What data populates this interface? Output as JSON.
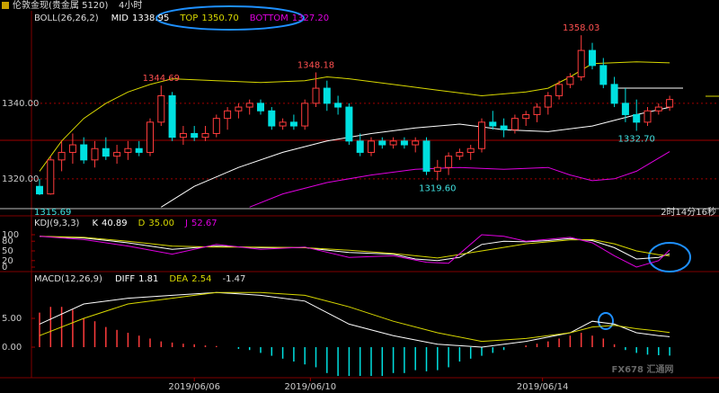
{
  "header": {
    "title": "伦敦金现(贵金属 5120)",
    "period": "4小时"
  },
  "watermark": "FX678 汇通网",
  "countdown": "2时14分16秒",
  "chart_data": [
    {
      "type": "candlestick",
      "title": "BOLL(26,26,2)",
      "open": [
        1318,
        1316,
        1325,
        1327,
        1329,
        1325,
        1328,
        1326,
        1327,
        1328,
        1327,
        1335,
        1342,
        1331,
        1332,
        1331,
        1332,
        1336,
        1338,
        1339,
        1340,
        1338,
        1334,
        1335,
        1334,
        1340,
        1344,
        1340,
        1339,
        1330,
        1327,
        1330,
        1329,
        1330,
        1329,
        1330,
        1322,
        1323,
        1326,
        1327,
        1328,
        1335,
        1334,
        1333,
        1336,
        1337,
        1339,
        1342,
        1345,
        1347,
        1354,
        1350,
        1345,
        1340,
        1337,
        1335,
        1338,
        1339
      ],
      "high": [
        1320,
        1326,
        1330,
        1332,
        1331,
        1330,
        1331,
        1329,
        1330,
        1330,
        1336,
        1344.69,
        1343,
        1334,
        1334,
        1334,
        1337,
        1339,
        1340,
        1341,
        1341,
        1339,
        1336,
        1337,
        1341,
        1348.18,
        1346,
        1342,
        1340,
        1332,
        1331,
        1331,
        1331,
        1331,
        1331,
        1331,
        1325,
        1327,
        1328,
        1329,
        1336,
        1338,
        1336,
        1337,
        1338,
        1340,
        1343,
        1346,
        1348,
        1358.03,
        1356,
        1352,
        1347,
        1344,
        1341,
        1339,
        1340,
        1342
      ],
      "low": [
        1315.69,
        1315.8,
        1322,
        1324,
        1324,
        1323,
        1325,
        1324,
        1325,
        1326,
        1326,
        1334,
        1330,
        1329,
        1330,
        1330,
        1331,
        1333,
        1336,
        1337,
        1337,
        1333,
        1333,
        1333,
        1333,
        1339,
        1338,
        1337,
        1329,
        1326,
        1326,
        1328,
        1328,
        1328,
        1327,
        1321,
        1319.6,
        1321,
        1325,
        1325,
        1327,
        1333,
        1331,
        1332,
        1334,
        1335,
        1337,
        1341,
        1344,
        1346,
        1349,
        1344,
        1339,
        1335,
        1332.7,
        1334,
        1337,
        1338
      ],
      "close": [
        1316,
        1325,
        1327,
        1329,
        1325,
        1328,
        1326,
        1327,
        1328,
        1327,
        1335,
        1342,
        1331,
        1332,
        1331,
        1332,
        1336,
        1338,
        1339,
        1340,
        1338,
        1334,
        1335,
        1334,
        1340,
        1344,
        1340,
        1339,
        1330,
        1327,
        1330,
        1329,
        1330,
        1329,
        1330,
        1322,
        1323,
        1326,
        1327,
        1328,
        1335,
        1334,
        1333,
        1336,
        1337,
        1339,
        1342,
        1345,
        1347,
        1354,
        1350,
        1345,
        1340,
        1337,
        1335,
        1338,
        1339,
        1341
      ],
      "up_color": "#ff3c3c",
      "down_color": "#00e0e0",
      "ylim": [
        1312.1,
        1364.5
      ],
      "yticks": [
        {
          "value": 1340,
          "label": "1340.00"
        },
        {
          "value": 1320,
          "label": "1320.00"
        }
      ],
      "grid": true,
      "series": [
        {
          "name": "MID",
          "color": "#ffffff",
          "current": 1338.95,
          "x": [
            11,
            14,
            18,
            22,
            26,
            30,
            34,
            38,
            42,
            46,
            50,
            54,
            57
          ],
          "values": [
            1312.5,
            1318,
            1323,
            1327,
            1330,
            1332,
            1333.5,
            1334.5,
            1333,
            1332.5,
            1334,
            1337,
            1338.95
          ]
        },
        {
          "name": "TOP",
          "color": "#d8d800",
          "current": {
            "value": 1350.7,
            "label": "1350.70"
          },
          "x": [
            0,
            2,
            4,
            6,
            8,
            10,
            12,
            16,
            20,
            24,
            26,
            28,
            32,
            36,
            40,
            44,
            46,
            48,
            50,
            54,
            57
          ],
          "values": [
            1322,
            1330,
            1336,
            1340,
            1343,
            1345,
            1346.5,
            1346,
            1345.5,
            1346,
            1347,
            1346.5,
            1345,
            1343.5,
            1342,
            1343,
            1344,
            1347,
            1350.5,
            1351,
            1350.7
          ]
        },
        {
          "name": "BOTTOM",
          "color": "#e000e0",
          "current": {
            "value": 1327.2,
            "label": "1327.20"
          },
          "x": [
            19,
            22,
            26,
            30,
            34,
            38,
            42,
            46,
            48,
            50,
            52,
            54,
            57
          ],
          "values": [
            1312.5,
            1316,
            1319,
            1321,
            1322.5,
            1323,
            1322.5,
            1323,
            1321,
            1319.5,
            1320,
            1322,
            1327.2
          ]
        }
      ],
      "annotations": [
        1344.69,
        1348.18,
        1358.03,
        {
          "value": 1319.6,
          "label": "1319.60"
        },
        {
          "value": 1332.7,
          "label": "1332.70"
        }
      ],
      "range_low": 1315.69
    },
    {
      "type": "line",
      "title": "KDJ(9,3,3)",
      "ylim": [
        -13.9,
        150
      ],
      "yticks": [
        100,
        80,
        50,
        20,
        0
      ],
      "grid": false,
      "series": [
        {
          "name": "K",
          "color": "#ffffff",
          "current": 40.89,
          "x": [
            0,
            4,
            8,
            12,
            16,
            20,
            24,
            28,
            32,
            34,
            36,
            38,
            40,
            42,
            44,
            46,
            48,
            50,
            52,
            54,
            56,
            57
          ],
          "values": [
            95,
            90,
            75,
            55,
            65,
            60,
            60,
            45,
            40,
            25,
            20,
            30,
            70,
            80,
            78,
            82,
            88,
            82,
            60,
            25,
            30,
            40.89
          ]
        },
        {
          "name": "D",
          "color": "#d8d800",
          "current": {
            "value": 35,
            "label": "35.00"
          },
          "x": [
            0,
            4,
            8,
            12,
            16,
            20,
            24,
            28,
            32,
            36,
            40,
            44,
            48,
            50,
            52,
            54,
            56,
            57
          ],
          "values": [
            95,
            92,
            80,
            65,
            62,
            62,
            60,
            52,
            42,
            28,
            50,
            72,
            84,
            85,
            72,
            50,
            38,
            35
          ]
        },
        {
          "name": "J",
          "color": "#e000e0",
          "current": 52.67,
          "x": [
            0,
            4,
            8,
            12,
            16,
            20,
            24,
            28,
            32,
            35,
            37,
            40,
            42,
            44,
            48,
            50,
            52,
            54,
            56,
            57
          ],
          "values": [
            95,
            85,
            65,
            40,
            70,
            55,
            62,
            30,
            35,
            15,
            12,
            100,
            95,
            80,
            92,
            75,
            35,
            0,
            20,
            52.67
          ]
        }
      ]
    },
    {
      "type": "macd",
      "title": "MACD(12,26,9)",
      "ylim": [
        -5.31,
        12.66
      ],
      "yticks": [
        {
          "value": 5,
          "label": "5.00"
        },
        {
          "value": 0,
          "label": "0.00"
        }
      ],
      "grid": false,
      "series": [
        {
          "name": "DIFF",
          "color": "#ffffff",
          "current": 1.81,
          "x": [
            0,
            4,
            8,
            12,
            16,
            20,
            24,
            28,
            32,
            36,
            40,
            44,
            48,
            50,
            52,
            54,
            56,
            57
          ],
          "values": [
            4,
            7.5,
            8.5,
            9,
            9.5,
            9,
            8,
            4,
            2,
            0.5,
            0,
            1,
            2.5,
            4.5,
            4,
            2.5,
            2,
            1.81
          ]
        },
        {
          "name": "DEA",
          "color": "#d8d800",
          "current": 2.54,
          "x": [
            0,
            4,
            8,
            12,
            16,
            20,
            24,
            28,
            32,
            36,
            40,
            44,
            48,
            50,
            52,
            54,
            56,
            57
          ],
          "values": [
            2,
            5,
            7.5,
            8.5,
            9.5,
            9.5,
            9,
            7,
            4.5,
            2.5,
            1,
            1.5,
            2.5,
            3.5,
            3.8,
            3.2,
            2.8,
            2.54
          ]
        }
      ],
      "histogram": {
        "up_color": "#ff3c3c",
        "down_color": "#00e0e0",
        "current": -1.47,
        "values": [
          6,
          7,
          7,
          6.5,
          5,
          4.5,
          3.5,
          3,
          2.5,
          2,
          1.5,
          1,
          0.8,
          0.6,
          0.5,
          0.3,
          0.2,
          0,
          -0.3,
          -0.5,
          -1,
          -1.5,
          -2,
          -2.5,
          -3,
          -3.5,
          -4.5,
          -5,
          -5,
          -5,
          -5,
          -5,
          -4.5,
          -4.5,
          -4,
          -4.2,
          -4,
          -3.5,
          -2.5,
          -2,
          -1.5,
          -1,
          -0.5,
          0,
          0.3,
          0.6,
          1,
          1.5,
          2,
          2.5,
          2,
          1.5,
          0.5,
          -0.5,
          -1,
          -1.3,
          -1.4,
          -1.47
        ]
      },
      "xticks": [
        {
          "value": 14,
          "label": "2019/06/06"
        },
        {
          "value": 24.5,
          "label": "2019/06/10"
        },
        {
          "value": 45.5,
          "label": "2019/06/14"
        }
      ]
    }
  ]
}
